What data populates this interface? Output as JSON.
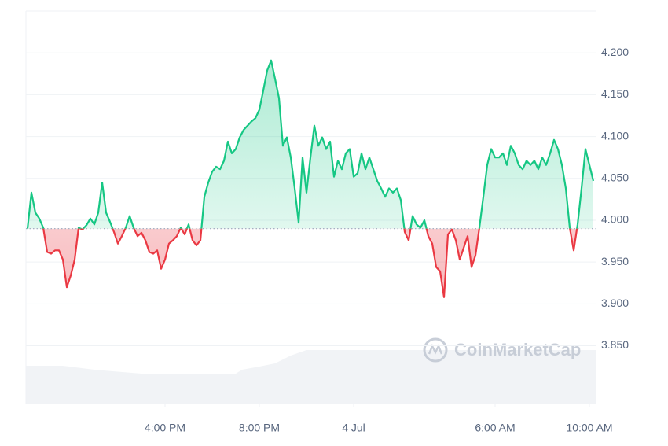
{
  "chart_data": {
    "type": "line",
    "watermark": "CoinMarketCap",
    "baseline": 3.99,
    "color_up": "#16c784",
    "color_down": "#ea3943",
    "grid": true,
    "xlim": [
      606,
      2056
    ],
    "xticks": [
      {
        "value": 960,
        "label": "4:00 PM"
      },
      {
        "value": 1200,
        "label": "8:00 PM"
      },
      {
        "value": 1440,
        "label": "4 Jul"
      },
      {
        "value": 1800,
        "label": "6:00 AM"
      },
      {
        "value": 2040,
        "label": "10:00 AM"
      }
    ],
    "ylim": [
      3.78,
      4.25
    ],
    "yticks": [
      {
        "value": 3.85,
        "label": "3.850"
      },
      {
        "value": 3.9,
        "label": "3.900"
      },
      {
        "value": 3.95,
        "label": "3.950"
      },
      {
        "value": 4.0,
        "label": "4.000"
      },
      {
        "value": 4.05,
        "label": "4.050"
      },
      {
        "value": 4.1,
        "label": "4.100"
      },
      {
        "value": 4.15,
        "label": "4.150"
      },
      {
        "value": 4.2,
        "label": "4.200"
      }
    ],
    "x": [
      610,
      620,
      630,
      640,
      650,
      660,
      670,
      680,
      690,
      700,
      710,
      720,
      730,
      740,
      750,
      760,
      770,
      780,
      790,
      800,
      810,
      820,
      830,
      840,
      850,
      860,
      870,
      880,
      890,
      900,
      910,
      920,
      930,
      940,
      950,
      960,
      970,
      980,
      990,
      1000,
      1010,
      1020,
      1030,
      1040,
      1050,
      1060,
      1070,
      1080,
      1090,
      1100,
      1110,
      1120,
      1130,
      1140,
      1150,
      1160,
      1170,
      1180,
      1190,
      1200,
      1210,
      1220,
      1230,
      1240,
      1250,
      1260,
      1270,
      1280,
      1290,
      1300,
      1310,
      1320,
      1330,
      1340,
      1350,
      1360,
      1370,
      1380,
      1390,
      1400,
      1410,
      1420,
      1430,
      1440,
      1450,
      1460,
      1470,
      1480,
      1490,
      1500,
      1510,
      1520,
      1530,
      1540,
      1550,
      1560,
      1570,
      1580,
      1590,
      1600,
      1610,
      1620,
      1630,
      1640,
      1650,
      1660,
      1670,
      1680,
      1690,
      1700,
      1710,
      1720,
      1730,
      1740,
      1750,
      1760,
      1770,
      1780,
      1790,
      1800,
      1810,
      1820,
      1830,
      1840,
      1850,
      1860,
      1870,
      1880,
      1890,
      1900,
      1910,
      1920,
      1930,
      1940,
      1950,
      1960,
      1970,
      1980,
      1990,
      2000,
      2010,
      2020,
      2030,
      2040,
      2050
    ],
    "values": [
      3.99,
      4.033,
      4.009,
      4.002,
      3.991,
      3.962,
      3.96,
      3.964,
      3.964,
      3.953,
      3.92,
      3.934,
      3.953,
      3.991,
      3.989,
      3.994,
      4.002,
      3.995,
      4.009,
      4.045,
      4.009,
      3.998,
      3.986,
      3.972,
      3.981,
      3.991,
      4.005,
      3.991,
      3.981,
      3.985,
      3.976,
      3.962,
      3.96,
      3.964,
      3.942,
      3.953,
      3.972,
      3.976,
      3.981,
      3.991,
      3.983,
      3.995,
      3.976,
      3.97,
      3.976,
      4.028,
      4.045,
      4.058,
      4.064,
      4.061,
      4.071,
      4.094,
      4.08,
      4.085,
      4.099,
      4.108,
      4.113,
      4.118,
      4.122,
      4.132,
      4.155,
      4.179,
      4.191,
      4.169,
      4.146,
      4.089,
      4.099,
      4.075,
      4.038,
      3.997,
      4.075,
      4.033,
      4.075,
      4.113,
      4.089,
      4.099,
      4.085,
      4.094,
      4.052,
      4.071,
      4.061,
      4.08,
      4.085,
      4.052,
      4.056,
      4.08,
      4.061,
      4.075,
      4.061,
      4.047,
      4.038,
      4.028,
      4.038,
      4.033,
      4.038,
      4.024,
      3.986,
      3.976,
      4.005,
      3.995,
      3.991,
      4.0,
      3.981,
      3.972,
      3.944,
      3.939,
      3.908,
      3.983,
      3.989,
      3.976,
      3.953,
      3.967,
      3.981,
      3.944,
      3.958,
      3.991,
      4.028,
      4.066,
      4.085,
      4.075,
      4.075,
      4.08,
      4.066,
      4.089,
      4.08,
      4.066,
      4.061,
      4.071,
      4.066,
      4.071,
      4.061,
      4.075,
      4.066,
      4.08,
      4.096,
      4.085,
      4.066,
      4.038,
      3.991,
      3.964,
      3.995,
      4.038,
      4.085,
      4.066,
      4.047
    ]
  }
}
